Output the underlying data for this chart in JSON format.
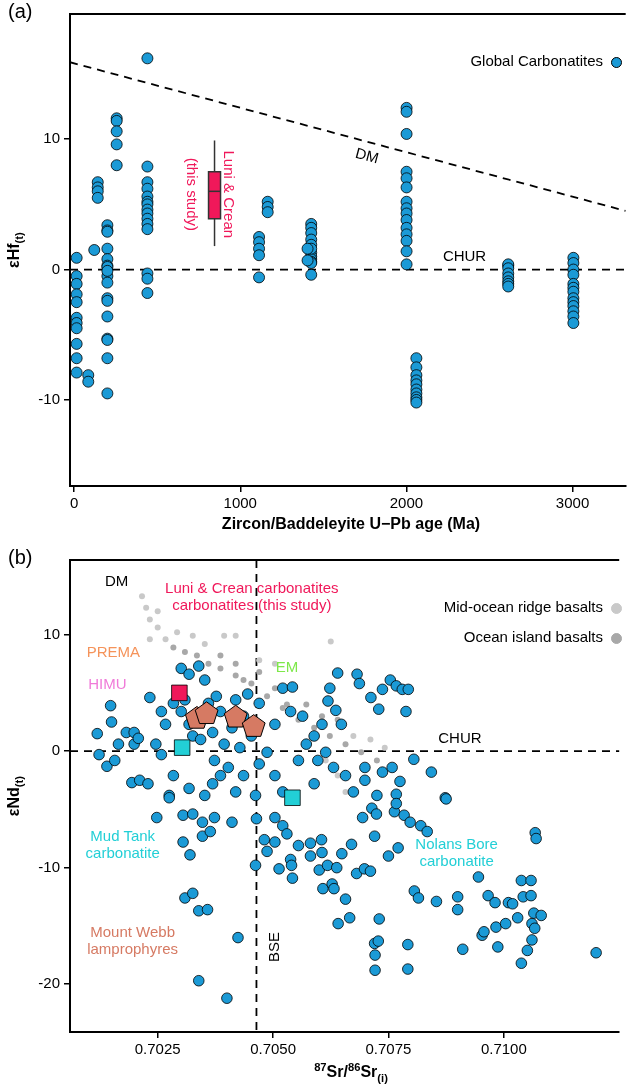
{
  "chart_data": [
    {
      "type": "scatter",
      "title": "(a)",
      "xlabel": "Zircon/Baddeleyite U−Pb age (Ma)",
      "ylabel": "εHf$_{(t)}$",
      "xlim": [
        -25,
        3320
      ],
      "ylim": [
        -16.6,
        19.6
      ],
      "xticks": [
        0,
        1000,
        2000,
        3000
      ],
      "yticks": [
        -10,
        0,
        10
      ],
      "legend": "top right",
      "marker": "circle",
      "series": [
        {
          "name": "Global Carbonatites",
          "color": "#1b9ad6",
          "x": [
            15,
            15,
            15,
            15,
            15,
            15,
            15,
            15,
            15,
            15,
            15,
            85,
            85,
            121,
            142,
            142,
            142,
            142,
            200,
            200,
            200,
            200,
            200,
            200,
            200,
            200,
            200,
            200,
            200,
            200,
            200,
            200,
            200,
            200,
            200,
            256,
            256,
            256,
            256,
            256,
            441,
            441,
            441,
            441,
            441,
            441,
            441,
            441,
            441,
            441,
            441,
            441,
            441,
            441,
            441,
            1113,
            1113,
            1113,
            1113,
            1113,
            1165,
            1165,
            1165,
            1427,
            1427,
            1427,
            1427,
            1427,
            1427,
            1427,
            1427,
            1427,
            1427,
            1427,
            1427,
            1405,
            1405,
            2001,
            2001,
            2001,
            2001,
            2001,
            2001,
            2001,
            2001,
            2001,
            2001,
            2001,
            2001,
            2001,
            2001,
            2001,
            2060,
            2060,
            2060,
            2060,
            2060,
            2060,
            2060,
            2060,
            2060,
            2060,
            2613,
            2613,
            2613,
            2613,
            2613,
            2613,
            2613,
            2613,
            3005,
            3005,
            3005,
            3005,
            3005,
            3005,
            3005,
            3005,
            3005,
            3005,
            3005,
            3005,
            3005
          ],
          "values": [
            0.9,
            -0.5,
            -1.1,
            -1.9,
            -2.5,
            -3.7,
            -4.1,
            -4.5,
            -5.7,
            -6.8,
            -7.9,
            -8.1,
            -8.6,
            1.5,
            6.7,
            6.3,
            6.0,
            5.5,
            3.4,
            3.0,
            2.9,
            1.6,
            0.8,
            0.3,
            0.2,
            -0.5,
            -1.0,
            -2.2,
            -2.4,
            -3.6,
            -5.3,
            -6.8,
            -9.5,
            -0.1,
            -5.4,
            11.6,
            11.4,
            10.6,
            9.6,
            8.0,
            16.2,
            7.9,
            6.7,
            6.2,
            5.6,
            5.2,
            5.0,
            4.6,
            4.3,
            3.9,
            3.5,
            3.1,
            -0.3,
            -0.7,
            -1.8,
            2.5,
            2.1,
            1.6,
            1.1,
            -0.6,
            5.2,
            4.8,
            4.4,
            3.5,
            3.2,
            2.8,
            2.3,
            1.9,
            1.3,
            1.0,
            0.8,
            0.6,
            0.5,
            -0.4,
            1.6,
            1.6,
            0.7,
            12.4,
            12.1,
            10.4,
            7.5,
            7.0,
            6.3,
            5.2,
            4.7,
            4.3,
            3.8,
            3.2,
            2.7,
            2.2,
            1.4,
            0.4,
            -6.8,
            -7.5,
            -8.1,
            -8.5,
            -8.8,
            -9.2,
            -9.5,
            -9.8,
            -10.0,
            -10.2,
            0.3,
            0.4,
            0.1,
            -0.3,
            -0.6,
            -0.9,
            -1.1,
            -1.3,
            0.9,
            0.5,
            0.0,
            -0.4,
            -1.1,
            -1.4,
            -1.7,
            -2.2,
            -2.5,
            -2.8,
            -3.2,
            -3.6,
            -4.1
          ]
        },
        {
          "type": "line",
          "color": "#000000",
          "line_style": "dashed",
          "marker": "none",
          "x": [
            -25,
            3320
          ],
          "values": [
            15.9,
            4.5
          ]
        },
        {
          "type": "box",
          "color": "#f0185a",
          "x": [
            845
          ],
          "boxes": [
            {
              "low": 1.8,
              "q1": 3.9,
              "median": 6.0,
              "q3": 7.5,
              "high": 9.9
            }
          ]
        }
      ],
      "ref_lines": [
        {
          "axis": "y",
          "value": 0,
          "label": "CHUR",
          "color": "#000000",
          "line_style": "dashed"
        }
      ],
      "annotations": [
        "DM",
        "Luni & Crean\n(this study)"
      ]
    },
    {
      "type": "scatter",
      "title": "(b)",
      "xlabel": "$^{87}$Sr/$^{86}$Sr$_{(i)}$",
      "ylabel": "εNd$_{(t)}$",
      "xlim": [
        0.7006,
        0.7125
      ],
      "ylim": [
        -24.1,
        16.4
      ],
      "xticks": [
        {
          "value": 0.7025,
          "label": "0.7025"
        },
        {
          "value": 0.705,
          "label": "0.7050"
        },
        {
          "value": 0.7075,
          "label": "0.7075"
        },
        {
          "value": 0.71,
          "label": "0.7100"
        }
      ],
      "yticks": [
        -20,
        -10,
        0,
        10
      ],
      "legend": "top right",
      "series": [
        {
          "name": "Mid-ocean ridge basalts",
          "color": "#c9c9c9",
          "marker": "circle",
          "x": [
            0.70216,
            0.70225,
            0.70233,
            0.7025,
            0.70267,
            0.70233,
            0.7025,
            0.70292,
            0.70326,
            0.70352,
            0.70419,
            0.70394,
            0.70625,
            0.70742,
            0.70711,
            0.70674,
            0.70657,
            0.7064,
            0.70614,
            0.7047,
            0.70504
          ],
          "values": [
            13.3,
            12.3,
            11.3,
            10.6,
            9.6,
            9.6,
            12.0,
            10.2,
            9.9,
            9.2,
            9.9,
            9.9,
            9.4,
            0.3,
            1.0,
            1.3,
            -3.5,
            -2.1,
            -0.8,
            7.8,
            7.5
          ]
        },
        {
          "name": "Ocean island basalts",
          "color": "#a8a8a8",
          "marker": "circle",
          "x": [
            0.70284,
            0.70309,
            0.70335,
            0.7036,
            0.70386,
            0.70419,
            0.70453,
            0.70487,
            0.70521,
            0.70555,
            0.70589,
            0.70623,
            0.70657,
            0.70691,
            0.70725,
            0.70386,
            0.70419,
            0.70436,
            0.7047,
            0.70504,
            0.7053,
            0.70572,
            0.70606,
            0.7064
          ],
          "values": [
            8.9,
            8.5,
            8.2,
            7.5,
            7.1,
            6.5,
            5.8,
            4.7,
            3.7,
            2.7,
            2.0,
            1.3,
            0.6,
            -0.1,
            -0.8,
            8.2,
            7.5,
            6.1,
            6.8,
            5.4,
            4.0,
            4.0,
            3.0,
            2.7
          ]
        },
        {
          "color": "#1b9ad6",
          "marker": "circle",
          "x": [
            0.70123,
            0.70119,
            0.70148,
            0.7015,
            0.7014,
            0.70157,
            0.70165,
            0.70182,
            0.70199,
            0.70199,
            0.70208,
            0.70194,
            0.70211,
            0.70229,
            0.70233,
            0.70258,
            0.70267,
            0.70246,
            0.70258,
            0.70275,
            0.70284,
            0.70301,
            0.70309,
            0.70318,
            0.70326,
            0.70343,
            0.7036,
            0.70377,
            0.70386,
            0.70369,
            0.70394,
            0.70411,
            0.70419,
            0.70436,
            0.70428,
            0.70453,
            0.7047,
            0.70445,
            0.70339,
            0.70301,
            0.70318,
            0.70352,
            0.70369,
            0.70386,
            0.70419,
            0.70436,
            0.7047,
            0.70487,
            0.70504,
            0.70521,
            0.70542,
            0.70538,
            0.70564,
            0.70572,
            0.70555,
            0.70589,
            0.70606,
            0.70623,
            0.7064,
            0.70619,
            0.70636,
            0.70648,
            0.70614,
            0.70597,
            0.70631,
            0.70657,
            0.70682,
            0.70687,
            0.70712,
            0.70729,
            0.70737,
            0.70754,
            0.70767,
            0.7078,
            0.70793,
            0.70788,
            0.70699,
            0.70699,
            0.70737,
            0.70758,
            0.70775,
            0.70805,
            0.70843,
            0.70873,
            0.70767,
            0.70725,
            0.70674,
            0.70589,
            0.70504,
            0.70521,
            0.70462,
            0.70352,
            0.70318,
            0.70284,
            0.70373,
            0.70403,
            0.70248,
            0.70275,
            0.70305,
            0.70326,
            0.70347,
            0.70347,
            0.70364,
            0.70373,
            0.70411,
            0.70305,
            0.7032,
            0.70309,
            0.70326,
            0.70339,
            0.70358,
            0.70424,
            0.70339,
            0.704,
            0.70464,
            0.70462,
            0.70487,
            0.70481,
            0.70504,
            0.70513,
            0.70504,
            0.70521,
            0.7053,
            0.70538,
            0.7054,
            0.70542,
            0.70555,
            0.70581,
            0.70581,
            0.706,
            0.70605,
            0.70606,
            0.70608,
            0.70618,
            0.70628,
            0.70632,
            0.70638,
            0.70649,
            0.70657,
            0.70641,
            0.70666,
            0.7067,
            0.70681,
            0.70698,
            0.70711,
            0.70694,
            0.70714,
            0.70724,
            0.7072,
            0.7073,
            0.7072,
            0.70721,
            0.70721,
            0.70728,
            0.7075,
            0.70771,
            0.70763,
            0.70784,
            0.70797,
            0.70767,
            0.70792,
            0.70792,
            0.70806,
            0.70815,
            0.7082,
            0.70834,
            0.70854,
            0.70875,
            0.709,
            0.709,
            0.70911,
            0.70945,
            0.70966,
            0.70953,
            0.70957,
            0.70981,
            0.70983,
            0.70987,
            0.7101,
            0.71019,
            0.71004,
            0.7103,
            0.71038,
            0.71059,
            0.71042,
            0.71059,
            0.71065,
            0.71081,
            0.71061,
            0.71067,
            0.71061,
            0.71051,
            0.71038,
            0.71068,
            0.7107,
            0.712
          ],
          "values": [
            -0.3,
            1.5,
            3.9,
            2.5,
            -1.3,
            -0.8,
            0.6,
            1.6,
            1.6,
            0.6,
            1.1,
            -2.7,
            -2.5,
            -2.8,
            4.6,
            3.4,
            2.3,
            0.6,
            -0.3,
            -3.8,
            4.1,
            3.4,
            4.4,
            2.3,
            1.3,
            1.0,
            4.1,
            4.7,
            3.4,
            1.6,
            0.6,
            2.0,
            4.4,
            3.0,
            0.3,
            1.3,
            4.1,
            4.9,
            7.3,
            7.1,
            6.6,
            6.1,
            -2.8,
            -2.1,
            -3.5,
            -2.1,
            -1.1,
            -0.1,
            2.3,
            5.4,
            5.5,
            3.4,
            3.0,
            0.6,
            -0.8,
            1.3,
            2.3,
            5.4,
            6.7,
            4.3,
            3.5,
            2.3,
            -0.1,
            -0.8,
            -1.4,
            -2.1,
            6.6,
            5.8,
            4.6,
            3.6,
            5.3,
            6.1,
            5.6,
            5.3,
            5.3,
            3.4,
            -1.4,
            -2.5,
            -1.8,
            -1.4,
            -2.6,
            -0.7,
            -1.8,
            -4.0,
            -3.7,
            -3.8,
            -3.5,
            -2.8,
            -2.1,
            -3.5,
            -3.8,
            -3.8,
            -3.2,
            -2.1,
            -0.8,
            -1.4,
            -5.7,
            -4.0,
            -5.5,
            -5.4,
            -6.1,
            -7.3,
            -6.9,
            -5.7,
            -6.1,
            -7.8,
            -8.9,
            -12.6,
            -12.2,
            -13.7,
            -13.6,
            -16.0,
            -19.7,
            -21.2,
            -5.8,
            -9.8,
            -8.6,
            -7.6,
            -7.8,
            -10.1,
            -5.7,
            -6.4,
            -7.1,
            -9.3,
            -9.8,
            -10.9,
            -8.1,
            -9.0,
            -7.9,
            -10.2,
            -7.6,
            -8.7,
            -11.8,
            -9.8,
            -11.4,
            -11.8,
            -10.0,
            -8.8,
            -12.7,
            -14.8,
            -14.3,
            -8.0,
            -10.5,
            -10.1,
            -10.3,
            -5.7,
            -4.9,
            -5.4,
            -7.3,
            -14.4,
            -16.5,
            -17.5,
            -18.8,
            -16.3,
            -9.0,
            -8.3,
            -5.2,
            -5.5,
            -6.1,
            -4.5,
            -16.6,
            -18.7,
            -12.0,
            -12.6,
            -6.4,
            -6.9,
            -12.9,
            -4.1,
            -12.5,
            -13.6,
            -17.0,
            -10.8,
            -12.4,
            -15.8,
            -15.5,
            -13.0,
            -15.1,
            -16.8,
            -13.0,
            -13.1,
            -14.8,
            -14.3,
            -11.1,
            -11.1,
            -12.5,
            -12.4,
            -13.9,
            -14.1,
            -14.8,
            -15.2,
            -16.2,
            -17.1,
            -18.2,
            -7.0,
            -7.5,
            -17.3
          ]
        },
        {
          "color": "#f0185a",
          "marker": "square",
          "x": [
            0.70297
          ],
          "values": [
            5.0
          ]
        },
        {
          "color": "#22cfd6",
          "marker": "square",
          "x": [
            0.70303
          ],
          "values": [
            0.3
          ]
        },
        {
          "color": "#22cfd6",
          "marker": "square",
          "x": [
            0.70542
          ],
          "values": [
            -4.0
          ]
        },
        {
          "color": "#d67a63",
          "x": [
            0.70335,
            0.70356,
            0.70419,
            0.70458
          ],
          "values": [
            2.8,
            3.2,
            2.9,
            2.1
          ]
        }
      ],
      "ref_lines": [
        {
          "axis": "y",
          "value": 0,
          "label": "CHUR",
          "color": "#000000",
          "line_style": "dashed"
        },
        {
          "axis": "x",
          "value": 0.70464,
          "label": "BSE",
          "color": "#000000",
          "line_style": "dashed"
        }
      ],
      "annotations": [
        "DM",
        "Luni & Crean carbonatites\ncarbonatites (this study)",
        "PREMA",
        "HIMU",
        "EM",
        "Mud Tank\ncarbonatite",
        "Nolans Bore\ncarbonatite",
        "Mount Webb\nlamprophyres"
      ]
    }
  ]
}
